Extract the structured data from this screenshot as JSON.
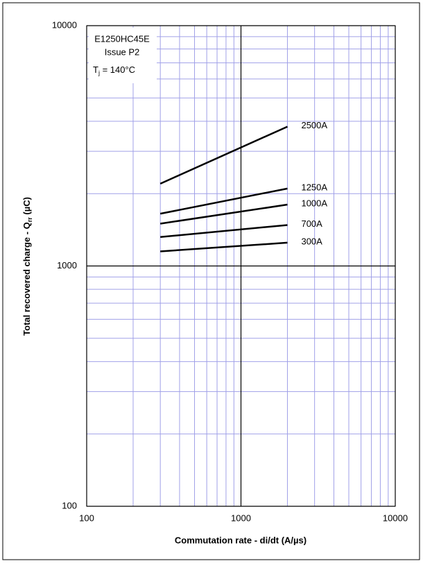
{
  "chart_data": {
    "type": "line",
    "x_label": {
      "text": "Commutation rate - di/dt (A/µs)"
    },
    "y_label": {
      "text": "Total recovered charge - Q",
      "subscript": "rr",
      "unit": " (µC)"
    },
    "annotation": {
      "lines": [
        "E1250HC45E",
        "Issue P2"
      ],
      "symbol": "T",
      "subscript": "j",
      "condition": " = 140°C"
    },
    "x": [
      300,
      2000
    ],
    "series": [
      {
        "name": "2500A",
        "color": "#000000",
        "values": [
          2200,
          3800
        ]
      },
      {
        "name": "1250A",
        "color": "#000000",
        "values": [
          1650,
          2100
        ]
      },
      {
        "name": "1000A",
        "color": "#000000",
        "values": [
          1500,
          1800
        ]
      },
      {
        "name": "700A",
        "color": "#000000",
        "values": [
          1320,
          1480
        ]
      },
      {
        "name": "300A",
        "color": "#000000",
        "values": [
          1150,
          1250
        ]
      }
    ],
    "log_x": true,
    "log_y": true,
    "xlim": [
      100,
      10000
    ],
    "ylim": [
      100,
      10000
    ],
    "xticks": [
      100,
      1000,
      10000
    ],
    "yticks": [
      100,
      1000,
      10000
    ],
    "xminor_ticks": [
      200,
      300,
      400,
      500,
      600,
      700,
      800,
      900,
      2000,
      3000,
      4000,
      5000,
      6000,
      7000,
      8000,
      9000
    ],
    "yminor_ticks": [
      200,
      300,
      400,
      500,
      600,
      700,
      800,
      900,
      2000,
      3000,
      4000,
      5000,
      6000,
      7000,
      8000,
      9000
    ],
    "grid": true,
    "major_grid_color": "#000000",
    "minor_grid_color": "#a0a0e8"
  }
}
